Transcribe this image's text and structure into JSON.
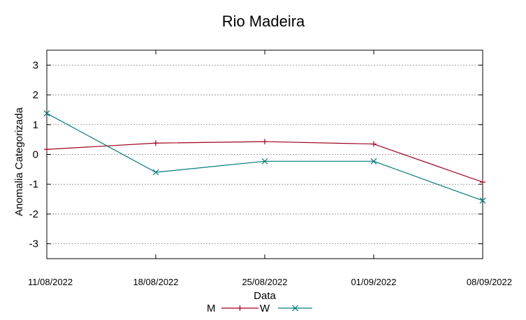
{
  "chart_data": {
    "type": "line",
    "title": "Rio Madeira",
    "xlabel": "Data",
    "ylabel": "Anomalia Categorizada",
    "categories": [
      "11/08/2022",
      "18/08/2022",
      "25/08/2022",
      "01/09/2022",
      "08/09/2022"
    ],
    "yticks": [
      "3",
      "2",
      "1",
      "0",
      "-1",
      "-2",
      "-3"
    ],
    "ytick_values": [
      3,
      2,
      1,
      0,
      -1,
      -2,
      -3
    ],
    "ylim": [
      -3.5,
      3.5
    ],
    "grid": true,
    "legend_position": "bottom",
    "series": [
      {
        "name": "M",
        "color": "#a0001e",
        "marker": "plus",
        "values": [
          0.17,
          0.38,
          0.43,
          0.35,
          -0.93
        ]
      },
      {
        "name": "W",
        "color": "#007a7a",
        "marker": "cross",
        "values": [
          1.38,
          -0.6,
          -0.23,
          -0.23,
          -1.55
        ]
      }
    ]
  }
}
